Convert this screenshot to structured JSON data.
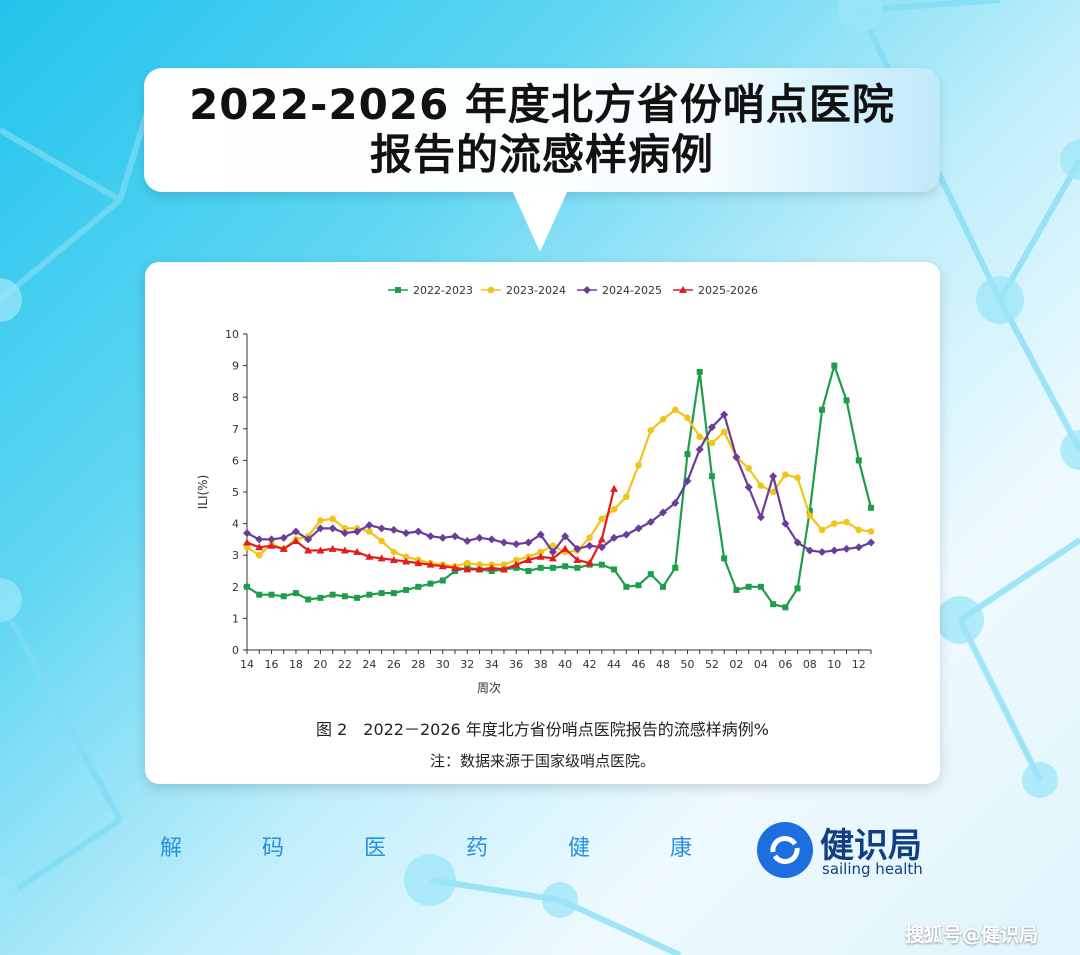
{
  "title": {
    "line1": "2022-2026 年度北方省份哨点医院",
    "line2": "报告的流感样病例"
  },
  "caption": "图 2　2022－2026 年度北方省份哨点医院报告的流感样病例%",
  "note": "注：数据来源于国家级哨点医院。",
  "footer": {
    "chars": [
      "解",
      "码",
      "医",
      "药",
      "健",
      "康"
    ],
    "brand_cn": "健识局",
    "brand_en": "sailing health"
  },
  "watermark": "搜狐号@健识局",
  "colors": {
    "s2022": "#1e9e4a",
    "s2023": "#f2c318",
    "s2024": "#6a3d9a",
    "s2025": "#e31d1d"
  },
  "chart_data": {
    "type": "line",
    "xlabel": "周次",
    "ylabel": "ILI(%)",
    "ylim": [
      0,
      10
    ],
    "yticks": [
      0,
      1,
      2,
      3,
      4,
      5,
      6,
      7,
      8,
      9,
      10
    ],
    "x": [
      "14",
      "15",
      "16",
      "17",
      "18",
      "19",
      "20",
      "21",
      "22",
      "23",
      "24",
      "25",
      "26",
      "27",
      "28",
      "29",
      "30",
      "31",
      "32",
      "33",
      "34",
      "35",
      "36",
      "37",
      "38",
      "39",
      "40",
      "41",
      "42",
      "43",
      "44",
      "45",
      "46",
      "47",
      "48",
      "49",
      "50",
      "51",
      "52",
      "01",
      "02",
      "03",
      "04",
      "05",
      "06",
      "07",
      "08",
      "09",
      "10",
      "11",
      "12",
      "13"
    ],
    "xtick_labels": [
      "14",
      "16",
      "18",
      "20",
      "22",
      "24",
      "26",
      "28",
      "30",
      "32",
      "34",
      "36",
      "38",
      "40",
      "42",
      "44",
      "46",
      "48",
      "50",
      "52",
      "02",
      "04",
      "06",
      "08",
      "10",
      "12"
    ],
    "legend_position": "top",
    "series": [
      {
        "name": "2022-2023",
        "color": "#1e9e4a",
        "marker": "square",
        "values": [
          2.0,
          1.75,
          1.75,
          1.7,
          1.8,
          1.6,
          1.65,
          1.75,
          1.7,
          1.65,
          1.75,
          1.8,
          1.8,
          1.9,
          2.0,
          2.1,
          2.2,
          2.5,
          2.6,
          2.55,
          2.5,
          2.55,
          2.6,
          2.5,
          2.6,
          2.6,
          2.65,
          2.6,
          2.7,
          2.7,
          2.55,
          2.0,
          2.05,
          2.4,
          2.0,
          2.6,
          6.2,
          8.8,
          5.5,
          2.9,
          1.9,
          2.0,
          2.0,
          1.45,
          1.35,
          1.95,
          4.4,
          7.6,
          9.0,
          7.9,
          6.0,
          4.5
        ]
      },
      {
        "name": "2023-2024",
        "color": "#f2c318",
        "marker": "circle",
        "values": [
          3.25,
          3.0,
          3.35,
          3.2,
          3.5,
          3.6,
          4.1,
          4.15,
          3.85,
          3.85,
          3.75,
          3.45,
          3.1,
          2.95,
          2.85,
          2.75,
          2.7,
          2.65,
          2.75,
          2.7,
          2.7,
          2.7,
          2.85,
          2.95,
          3.1,
          3.3,
          3.1,
          3.15,
          3.55,
          4.15,
          4.45,
          4.85,
          5.85,
          6.95,
          7.3,
          7.6,
          7.35,
          6.75,
          6.55,
          6.9,
          6.1,
          5.75,
          5.2,
          5.0,
          5.55,
          5.45,
          4.25,
          3.8,
          4.0,
          4.05,
          3.8,
          3.75
        ]
      },
      {
        "name": "2024-2025",
        "color": "#6a3d9a",
        "marker": "diamond",
        "values": [
          3.7,
          3.5,
          3.5,
          3.55,
          3.75,
          3.5,
          3.85,
          3.85,
          3.7,
          3.75,
          3.95,
          3.85,
          3.8,
          3.7,
          3.75,
          3.6,
          3.55,
          3.6,
          3.45,
          3.55,
          3.5,
          3.4,
          3.35,
          3.4,
          3.65,
          3.1,
          3.6,
          3.2,
          3.3,
          3.25,
          3.55,
          3.65,
          3.85,
          4.05,
          4.35,
          4.65,
          5.35,
          6.35,
          7.05,
          7.45,
          6.1,
          5.15,
          4.2,
          5.5,
          4.0,
          3.4,
          3.15,
          3.1,
          3.15,
          3.2,
          3.25,
          3.4
        ]
      },
      {
        "name": "2025-2026",
        "color": "#e31d1d",
        "marker": "triangle",
        "values": [
          3.4,
          3.25,
          3.3,
          3.2,
          3.45,
          3.15,
          3.15,
          3.2,
          3.15,
          3.1,
          2.95,
          2.9,
          2.85,
          2.8,
          2.75,
          2.7,
          2.65,
          2.6,
          2.55,
          2.55,
          2.6,
          2.55,
          2.7,
          2.85,
          2.95,
          2.9,
          3.2,
          2.85,
          2.75,
          3.5,
          5.1,
          null,
          null,
          null,
          null,
          null,
          null,
          null,
          null,
          null,
          null,
          null,
          null,
          null,
          null,
          null,
          null,
          null,
          null,
          null,
          null,
          null
        ]
      }
    ]
  }
}
